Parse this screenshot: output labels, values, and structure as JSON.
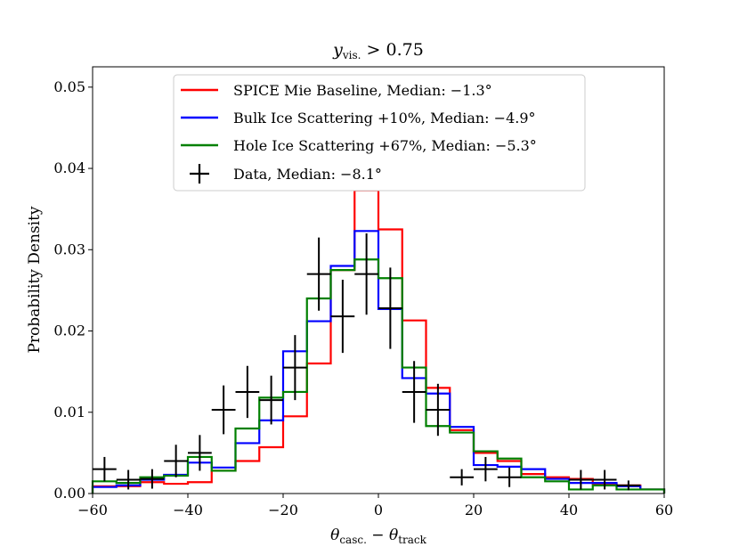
{
  "chart_data": {
    "type": "histogram-step",
    "title_main": "y",
    "title_sub": "vis.",
    "title_rest": " > 0.75",
    "xlabel_main": "θ",
    "xlabel_sub1": "casc.",
    "xlabel_mid": " − θ",
    "xlabel_sub2": "track",
    "ylabel": "Probability Density",
    "xlim": [
      -60,
      60
    ],
    "ylim": [
      0,
      0.0525
    ],
    "xticks": [
      {
        "value": -60,
        "label": "−60"
      },
      {
        "value": -40,
        "label": "−40"
      },
      {
        "value": -20,
        "label": "−20"
      },
      {
        "value": 0,
        "label": "0"
      },
      {
        "value": 20,
        "label": "20"
      },
      {
        "value": 40,
        "label": "40"
      },
      {
        "value": 60,
        "label": "60"
      }
    ],
    "yticks": [
      {
        "value": 0,
        "label": "0.00"
      },
      {
        "value": 0.01,
        "label": "0.01"
      },
      {
        "value": 0.02,
        "label": "0.02"
      },
      {
        "value": 0.03,
        "label": "0.03"
      },
      {
        "value": 0.04,
        "label": "0.04"
      },
      {
        "value": 0.05,
        "label": "0.05"
      }
    ],
    "bin_edges": [
      -60,
      -55,
      -50,
      -45,
      -40,
      -35,
      -30,
      -25,
      -20,
      -15,
      -10,
      -5,
      0,
      5,
      10,
      15,
      20,
      25,
      30,
      35,
      40,
      45,
      50,
      55,
      60
    ],
    "series": [
      {
        "name": "SPICE Mie Baseline, Median: −1.3°",
        "color": "#ff0000",
        "values": [
          0.0009,
          0.0009,
          0.0014,
          0.0012,
          0.0014,
          0.0028,
          0.004,
          0.0057,
          0.0095,
          0.016,
          0.0275,
          0.0373,
          0.0325,
          0.0213,
          0.013,
          0.0078,
          0.005,
          0.004,
          0.0024,
          0.002,
          0.0018,
          0.0012,
          0.001,
          0.0005
        ]
      },
      {
        "name": "Bulk Ice Scattering +10%, Median: −4.9°",
        "color": "#0000ff",
        "values": [
          0.0008,
          0.001,
          0.0017,
          0.0023,
          0.0038,
          0.0032,
          0.0062,
          0.009,
          0.0175,
          0.0212,
          0.028,
          0.0323,
          0.0227,
          0.0142,
          0.0123,
          0.0082,
          0.0035,
          0.0033,
          0.003,
          0.0018,
          0.0013,
          0.0013,
          0.0009,
          0.0005
        ]
      },
      {
        "name": "Hole Ice Scattering +67%, Median: −5.3°",
        "color": "#008000",
        "values": [
          0.0015,
          0.0013,
          0.002,
          0.0022,
          0.0045,
          0.0028,
          0.008,
          0.0118,
          0.0125,
          0.024,
          0.0275,
          0.0288,
          0.0265,
          0.0155,
          0.0083,
          0.0075,
          0.0052,
          0.0043,
          0.002,
          0.0015,
          0.0005,
          0.001,
          0.0005,
          0.0005
        ]
      }
    ],
    "data_points": {
      "name": "Data, Median: −8.1°",
      "color": "#000000",
      "half_width": 2.5,
      "x": [
        -57.5,
        -52.5,
        -47.5,
        -42.5,
        -37.5,
        -32.5,
        -27.5,
        -22.5,
        -17.5,
        -12.5,
        -7.5,
        -2.5,
        2.5,
        7.5,
        12.5,
        17.5,
        22.5,
        27.5,
        42.5,
        47.5,
        52.5
      ],
      "y": [
        0.003,
        0.0017,
        0.0018,
        0.004,
        0.005,
        0.0103,
        0.0125,
        0.0115,
        0.0155,
        0.027,
        0.0218,
        0.027,
        0.0228,
        0.0125,
        0.0103,
        0.002,
        0.003,
        0.002,
        0.0017,
        0.0017,
        0.001
      ],
      "yerr": [
        0.0015,
        0.0012,
        0.0012,
        0.002,
        0.0022,
        0.003,
        0.0032,
        0.003,
        0.004,
        0.0045,
        0.0045,
        0.005,
        0.005,
        0.0038,
        0.0032,
        0.001,
        0.0015,
        0.0012,
        0.0012,
        0.0012,
        0.0006
      ]
    },
    "legend_position": "top-center"
  }
}
